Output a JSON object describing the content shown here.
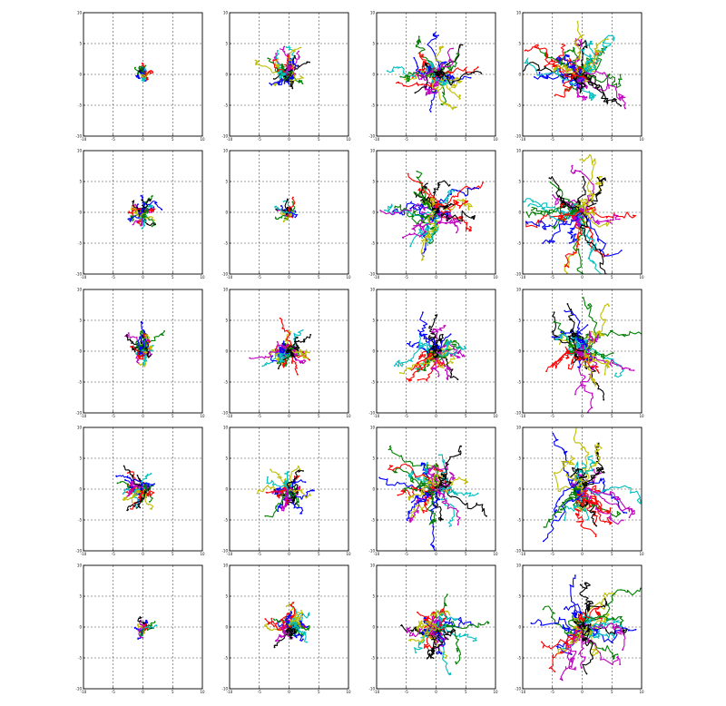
{
  "page": {
    "rows": 5,
    "cols": 4
  },
  "axes_template": {
    "xlim": [
      -10,
      10
    ],
    "ylim": [
      -10,
      10
    ],
    "xticks": [
      "-10",
      "-5",
      "0",
      "5",
      "10"
    ],
    "yticks": [
      "10",
      "5",
      "0",
      "-5",
      "-10"
    ],
    "grid": true,
    "grid_style": "dashed",
    "frame": true
  },
  "palette": [
    "#0000ff",
    "#008000",
    "#ff0000",
    "#00bfbf",
    "#bf00bf",
    "#bfbf00",
    "#000000"
  ],
  "chart_data": [
    {
      "type": "line",
      "panel": "r1c1",
      "n_traj": 25,
      "spread": 0.6,
      "steps": 14,
      "step_scale": 0.45,
      "drift": [
        0,
        0
      ],
      "seed": 11
    },
    {
      "type": "line",
      "panel": "r1c2",
      "n_traj": 35,
      "spread": 3.0,
      "steps": 28,
      "step_scale": 0.6,
      "drift": [
        -0.5,
        0.5
      ],
      "seed": 12
    },
    {
      "type": "line",
      "panel": "r1c3",
      "n_traj": 35,
      "spread": 5.5,
      "steps": 30,
      "step_scale": 0.85,
      "drift": [
        0,
        0.3
      ],
      "seed": 13
    },
    {
      "type": "line",
      "panel": "r1c4",
      "n_traj": 35,
      "spread": 7.5,
      "steps": 34,
      "step_scale": 1.0,
      "drift": [
        -0.3,
        0
      ],
      "seed": 14
    },
    {
      "type": "line",
      "panel": "r2c1",
      "n_traj": 30,
      "spread": 2.2,
      "steps": 22,
      "step_scale": 0.55,
      "drift": [
        0,
        0
      ],
      "seed": 21
    },
    {
      "type": "line",
      "panel": "r2c2",
      "n_traj": 25,
      "spread": 1.1,
      "steps": 16,
      "step_scale": 0.45,
      "drift": [
        0,
        0
      ],
      "seed": 22
    },
    {
      "type": "line",
      "panel": "r2c3",
      "n_traj": 35,
      "spread": 6.0,
      "steps": 32,
      "step_scale": 0.9,
      "drift": [
        -0.5,
        0
      ],
      "seed": 23
    },
    {
      "type": "line",
      "panel": "r2c4",
      "n_traj": 35,
      "spread": 7.5,
      "steps": 34,
      "step_scale": 1.0,
      "drift": [
        -1.2,
        -2.0
      ],
      "seed": 24
    },
    {
      "type": "line",
      "panel": "r3c1",
      "n_traj": 30,
      "spread": 2.8,
      "steps": 24,
      "step_scale": 0.55,
      "drift": [
        0,
        0.6
      ],
      "seed": 31
    },
    {
      "type": "line",
      "panel": "r3c2",
      "n_traj": 35,
      "spread": 3.6,
      "steps": 28,
      "step_scale": 0.65,
      "drift": [
        0,
        -0.3
      ],
      "seed": 32
    },
    {
      "type": "line",
      "panel": "r3c3",
      "n_traj": 35,
      "spread": 5.0,
      "steps": 30,
      "step_scale": 0.8,
      "drift": [
        0,
        -0.3
      ],
      "seed": 33
    },
    {
      "type": "line",
      "panel": "r3c4",
      "n_traj": 35,
      "spread": 6.0,
      "steps": 32,
      "step_scale": 0.9,
      "drift": [
        0,
        0.4
      ],
      "seed": 34
    },
    {
      "type": "line",
      "panel": "r4c1",
      "n_traj": 35,
      "spread": 3.2,
      "steps": 26,
      "step_scale": 0.55,
      "drift": [
        -0.4,
        0
      ],
      "seed": 41
    },
    {
      "type": "line",
      "panel": "r4c2",
      "n_traj": 35,
      "spread": 3.6,
      "steps": 26,
      "step_scale": 0.6,
      "drift": [
        0,
        0
      ],
      "seed": 42
    },
    {
      "type": "line",
      "panel": "r4c3",
      "n_traj": 35,
      "spread": 6.5,
      "steps": 32,
      "step_scale": 0.9,
      "drift": [
        0,
        0
      ],
      "seed": 43
    },
    {
      "type": "line",
      "panel": "r4c4",
      "n_traj": 35,
      "spread": 7.5,
      "steps": 34,
      "step_scale": 1.0,
      "drift": [
        0.8,
        0
      ],
      "seed": 44
    },
    {
      "type": "line",
      "panel": "r5c1",
      "n_traj": 20,
      "spread": 0.9,
      "steps": 14,
      "step_scale": 0.45,
      "drift": [
        0,
        0
      ],
      "seed": 51
    },
    {
      "type": "line",
      "panel": "r5c2",
      "n_traj": 35,
      "spread": 3.2,
      "steps": 26,
      "step_scale": 0.6,
      "drift": [
        0,
        0.2
      ],
      "seed": 52
    },
    {
      "type": "line",
      "panel": "r5c3",
      "n_traj": 35,
      "spread": 4.8,
      "steps": 30,
      "step_scale": 0.8,
      "drift": [
        0,
        0
      ],
      "seed": 53
    },
    {
      "type": "line",
      "panel": "r5c4",
      "n_traj": 35,
      "spread": 6.8,
      "steps": 34,
      "step_scale": 1.0,
      "drift": [
        0.6,
        -0.4
      ],
      "seed": 54
    }
  ]
}
